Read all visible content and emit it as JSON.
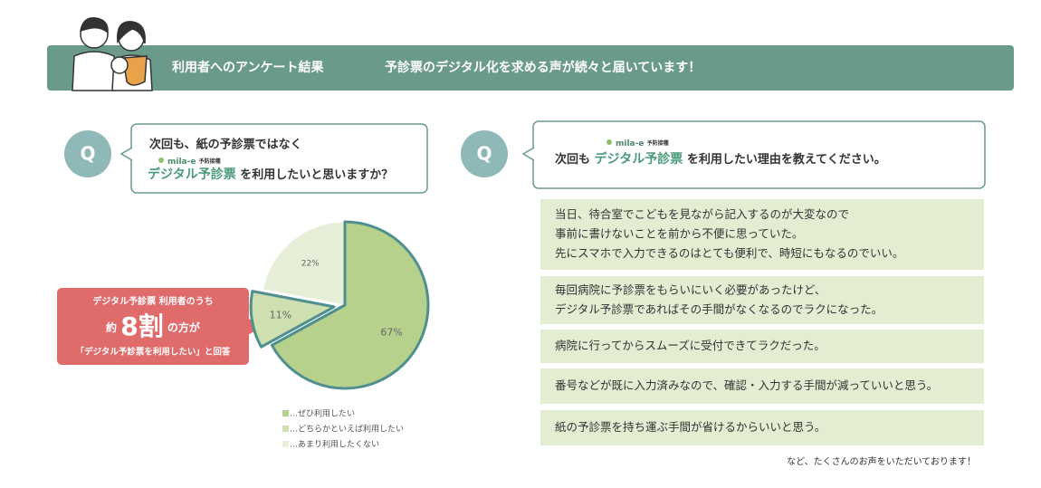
{
  "header": {
    "title": "利用者へのアンケート結果",
    "subtitle": "予診票のデジタル化を求める声が続々と届いています！"
  },
  "question1": {
    "badge": "Q",
    "line1": "次回も、紙の予診票ではなく",
    "logo": "mila-e",
    "logo_sub": "予防接種",
    "highlight": "デジタル予診票",
    "rest": "を利用したいと思いますか？"
  },
  "callout": {
    "line1": "デジタル予診票 利用者のうち",
    "prefix": "約",
    "big": "8割",
    "suffix": "の方が",
    "line3": "「デジタル予診票を利用したい」と回答"
  },
  "chart_data": {
    "type": "pie",
    "categories": [
      "…ぜひ利用したい",
      "…どちらかといえば利用したい",
      "…あまり利用したくない"
    ],
    "values": [
      67,
      11,
      22
    ],
    "value_labels": [
      "67%",
      "11%",
      "22%"
    ],
    "colors": [
      "#b5d18c",
      "#cfe0b0",
      "#e8efd9"
    ],
    "exploded": [
      false,
      true,
      false
    ],
    "outlined": [
      true,
      true,
      false
    ]
  },
  "question2": {
    "badge": "Q",
    "logo": "mila-e",
    "logo_sub": "予防接種",
    "pre": "次回も",
    "highlight": "デジタル予診票",
    "rest": "を利用したい理由を教えてください。"
  },
  "answers": [
    [
      "当日、待合室でこどもを見ながら記入するのが大変なので",
      "事前に書けないことを前から不便に思っていた。",
      "先にスマホで入力できるのはとても便利で、時短にもなるのでいい。"
    ],
    [
      "毎回病院に予診票をもらいにいく必要があったけど、",
      "デジタル予診票であればその手間がなくなるのでラクになった。"
    ],
    [
      "病院に行ってからスムーズに受付できてラクだった。"
    ],
    [
      "番号などが既に入力済みなので、確認・入力する手間が減っていいと思う。"
    ],
    [
      "紙の予診票を持ち運ぶ手間が省けるからいいと思う。"
    ]
  ],
  "footer": "など、たくさんのお声をいただいております！"
}
